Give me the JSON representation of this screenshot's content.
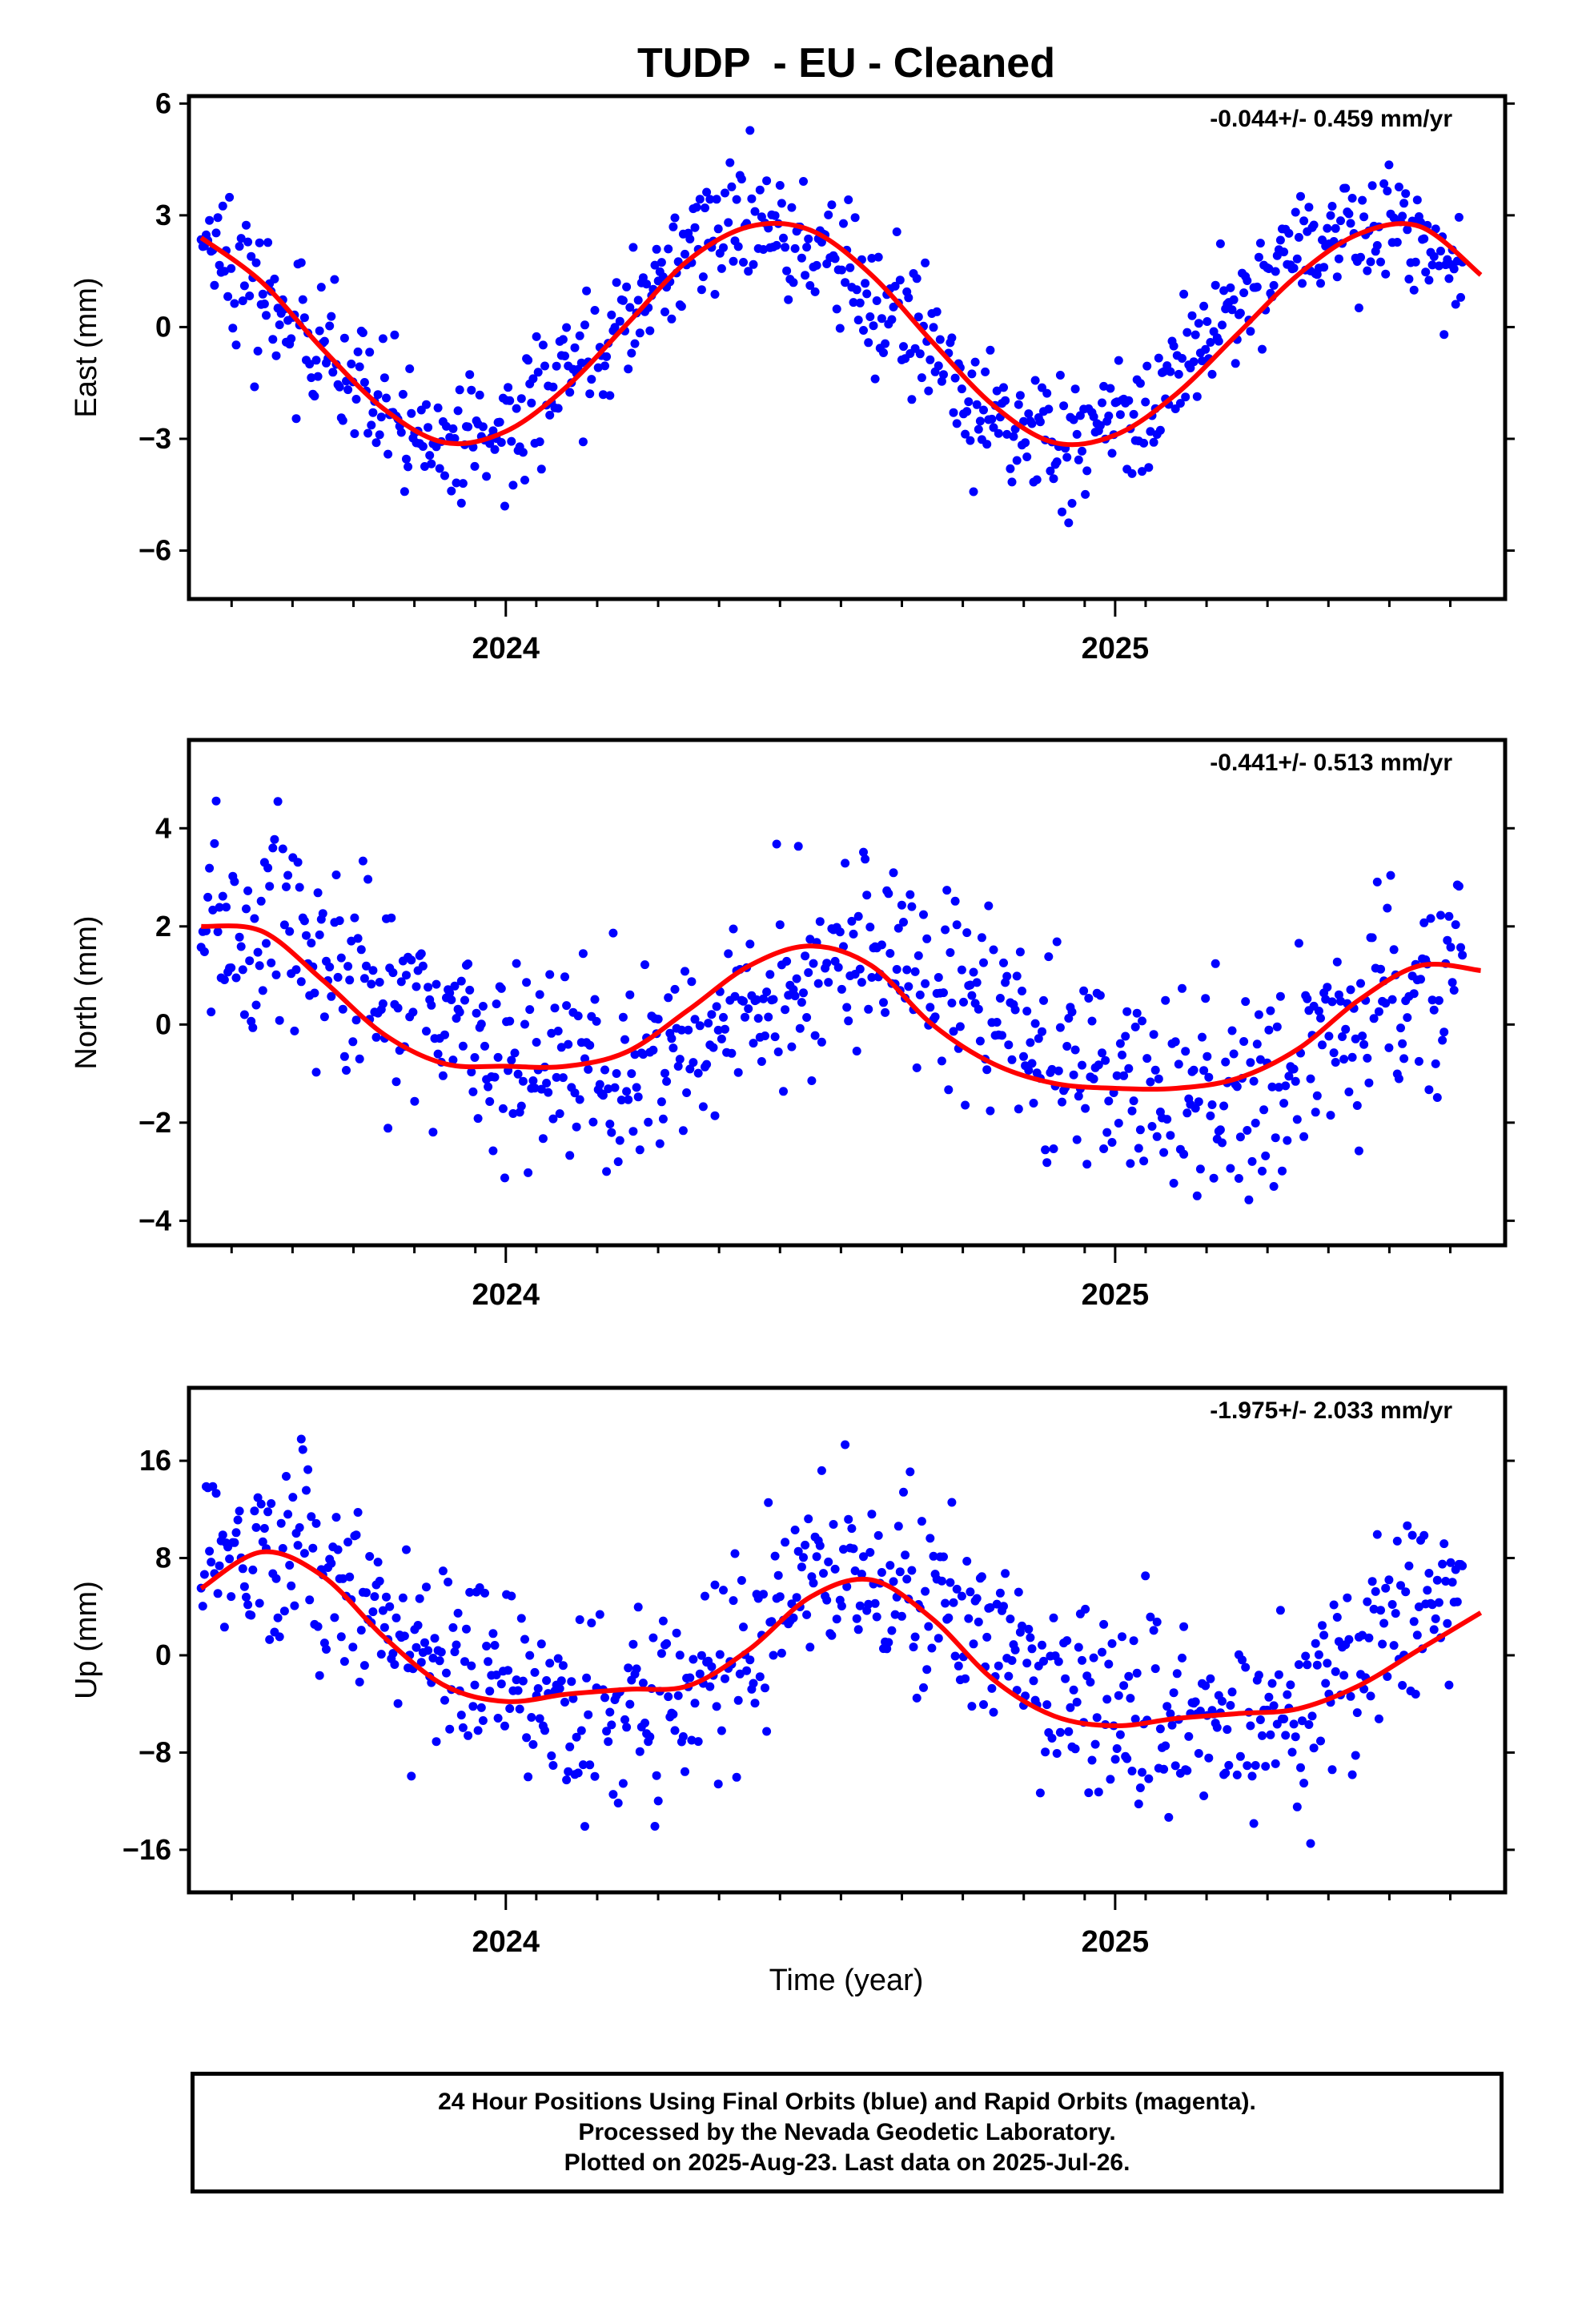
{
  "title": "TUDP  - EU - Cleaned",
  "xlabel": "Time (year)",
  "footer": {
    "line1": "24 Hour Positions Using Final Orbits (blue) and Rapid Orbits (magenta).",
    "line2": "Processed by the Nevada Geodetic Laboratory.",
    "line3": "Plotted on 2025-Aug-23. Last data on 2025-Jul-26."
  },
  "colors": {
    "points": "#0000ff",
    "fit": "#ff0000",
    "frame": "#000000"
  },
  "chart_data": [
    {
      "type": "scatter",
      "ylabel": "East (mm)",
      "rate": "-0.044+/- 0.459 mm/yr",
      "xlim": [
        2023.48,
        2025.64
      ],
      "ylim": [
        -7.3,
        6.2
      ],
      "yticks": [
        6,
        3,
        0,
        -3,
        -6
      ],
      "ytick_labels": [
        "6",
        "3",
        "0",
        "−3",
        "−6"
      ],
      "xticks": [
        2024,
        2025
      ],
      "xtick_labels": [
        "2024",
        "2025"
      ],
      "grid": false,
      "series": [
        {
          "role": "daily positions (blue)",
          "model": {
            "offset": -0.2,
            "trend": 0,
            "annual": [
              -1.5,
              2.55
            ],
            "semiannual": [
              0.0,
              0.0
            ],
            "noise": 0.85
          }
        },
        {
          "role": "fit (red)",
          "x": [
            2023.5,
            2023.6,
            2023.7,
            2023.8,
            2023.9,
            2024.0,
            2024.1,
            2024.2,
            2024.3,
            2024.4,
            2024.5,
            2024.6,
            2024.7,
            2024.8,
            2024.9,
            2025.0,
            2025.1,
            2025.2,
            2025.3,
            2025.4,
            2025.5,
            2025.6
          ],
          "y": [
            2.4,
            1.2,
            -0.6,
            -2.2,
            -3.1,
            -2.8,
            -1.6,
            0.1,
            1.8,
            2.7,
            2.6,
            1.4,
            -0.4,
            -2.1,
            -3.1,
            -2.9,
            -1.8,
            -0.2,
            1.4,
            2.5,
            2.7,
            1.4
          ]
        }
      ]
    },
    {
      "type": "scatter",
      "ylabel": "North (mm)",
      "rate": "-0.441+/- 0.513 mm/yr",
      "xlim": [
        2023.48,
        2025.64
      ],
      "ylim": [
        -4.5,
        5.8
      ],
      "yticks": [
        4,
        2,
        0,
        -2,
        -4
      ],
      "ytick_labels": [
        "4",
        "2",
        "0",
        "−2",
        "−4"
      ],
      "xticks": [
        2024,
        2025
      ],
      "xtick_labels": [
        "2024",
        "2025"
      ],
      "grid": false,
      "series": [
        {
          "role": "daily positions (blue)",
          "model": {
            "offset": 0.15,
            "trend": -0.44,
            "annual": [
              0.9,
              1.0
            ],
            "semiannual": [
              0.1,
              0.15
            ],
            "noise": 1.05
          }
        },
        {
          "role": "fit (red)",
          "x": [
            2023.5,
            2023.6,
            2023.7,
            2023.8,
            2023.9,
            2024.0,
            2024.1,
            2024.2,
            2024.3,
            2024.4,
            2024.5,
            2024.6,
            2024.7,
            2024.8,
            2024.9,
            2025.0,
            2025.1,
            2025.2,
            2025.3,
            2025.4,
            2025.5,
            2025.6
          ],
          "y": [
            2.0,
            1.9,
            0.9,
            -0.2,
            -0.8,
            -0.85,
            -0.85,
            -0.55,
            0.3,
            1.2,
            1.6,
            1.2,
            0.0,
            -0.8,
            -1.2,
            -1.3,
            -1.3,
            -1.1,
            -0.5,
            0.5,
            1.2,
            1.1
          ]
        }
      ]
    },
    {
      "type": "scatter",
      "ylabel": "Up (mm)",
      "rate": "-1.975+/- 2.033 mm/yr",
      "xlim": [
        2023.48,
        2025.64
      ],
      "ylim": [
        -19.5,
        22
      ],
      "yticks": [
        16,
        8,
        0,
        -8,
        -16
      ],
      "ytick_labels": [
        "16",
        "8",
        "0",
        "−8",
        "−16"
      ],
      "xticks": [
        2024,
        2025
      ],
      "xtick_labels": [
        "2024",
        "2025"
      ],
      "grid": false,
      "series": [
        {
          "role": "daily positions (blue)",
          "model": {
            "offset": 0.5,
            "trend": -2.0,
            "annual": [
              4.0,
              4.5
            ],
            "semiannual": [
              0.8,
              1.0
            ],
            "noise": 4.0
          }
        },
        {
          "role": "fit (red)",
          "x": [
            2023.5,
            2023.6,
            2023.7,
            2023.8,
            2023.9,
            2024.0,
            2024.1,
            2024.2,
            2024.3,
            2024.4,
            2024.5,
            2024.6,
            2024.7,
            2024.8,
            2024.9,
            2025.0,
            2025.1,
            2025.2,
            2025.3,
            2025.4,
            2025.5,
            2025.6
          ],
          "y": [
            5.5,
            8.5,
            6.5,
            1.5,
            -2.5,
            -3.8,
            -3.2,
            -2.8,
            -2.5,
            0.5,
            4.8,
            6.2,
            3.0,
            -2.0,
            -5.0,
            -5.8,
            -5.2,
            -4.8,
            -4.4,
            -2.5,
            0.5,
            3.5
          ]
        }
      ]
    }
  ]
}
